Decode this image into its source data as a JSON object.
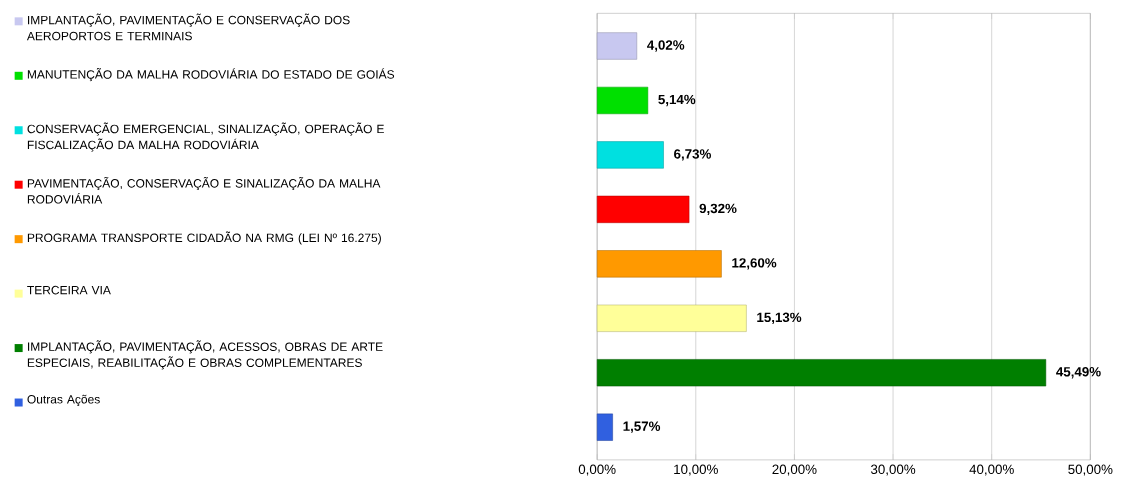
{
  "chart_data": {
    "type": "bar",
    "orientation": "horizontal",
    "categories": [
      null
    ],
    "series": [
      {
        "name": "IMPLANTAÇÃO, PAVIMENTAÇÃO E CONSERVAÇÃO DOS AEROPORTOS E TERMINAIS",
        "color": "#c8c8f0",
        "values": [
          4.02
        ],
        "value_labels": [
          "4,02%"
        ]
      },
      {
        "name": "MANUTENÇÃO DA MALHA RODOVIÁRIA DO ESTADO DE GOIÁS",
        "color": "#00e000",
        "values": [
          5.14
        ],
        "value_labels": [
          "5,14%"
        ]
      },
      {
        "name": "CONSERVAÇÃO EMERGENCIAL, SINALIZAÇÃO, OPERAÇÃO E FISCALIZAÇÃO DA MALHA RODOVIÁRIA",
        "color": "#00e0e0",
        "values": [
          6.73
        ],
        "value_labels": [
          "6,73%"
        ]
      },
      {
        "name": "PAVIMENTAÇÃO, CONSERVAÇÃO E SINALIZAÇÃO DA MALHA RODOVIÁRIA",
        "color": "#ff0000",
        "values": [
          9.32
        ],
        "value_labels": [
          "9,32%"
        ]
      },
      {
        "name": "PROGRAMA TRANSPORTE CIDADÃO NA RMG (LEI Nº 16.275)",
        "color": "#ff9900",
        "values": [
          12.6
        ],
        "value_labels": [
          "12,60%"
        ]
      },
      {
        "name": "TERCEIRA VIA",
        "color": "#ffff99",
        "values": [
          15.13
        ],
        "value_labels": [
          "15,13%"
        ]
      },
      {
        "name": "IMPLANTAÇÃO, PAVIMENTAÇÃO, ACESSOS, OBRAS DE ARTE ESPECIAIS, REABILITAÇÃO E OBRAS COMPLEMENTARES",
        "color": "#007f00",
        "values": [
          45.49
        ],
        "value_labels": [
          "45,49%"
        ]
      },
      {
        "name": "Outras Ações",
        "color": "#3060e0",
        "values": [
          1.57
        ],
        "value_labels": [
          "1,57%"
        ]
      }
    ],
    "xlim": [
      0,
      50
    ],
    "xticks": [
      {
        "value": 0,
        "label": "0,00%"
      },
      {
        "value": 10,
        "label": "10,00%"
      },
      {
        "value": 20,
        "label": "20,00%"
      },
      {
        "value": 30,
        "label": "30,00%"
      },
      {
        "value": 40,
        "label": "40,00%"
      },
      {
        "value": 50,
        "label": "50,00%"
      }
    ],
    "grid": "x",
    "legend": "left"
  }
}
